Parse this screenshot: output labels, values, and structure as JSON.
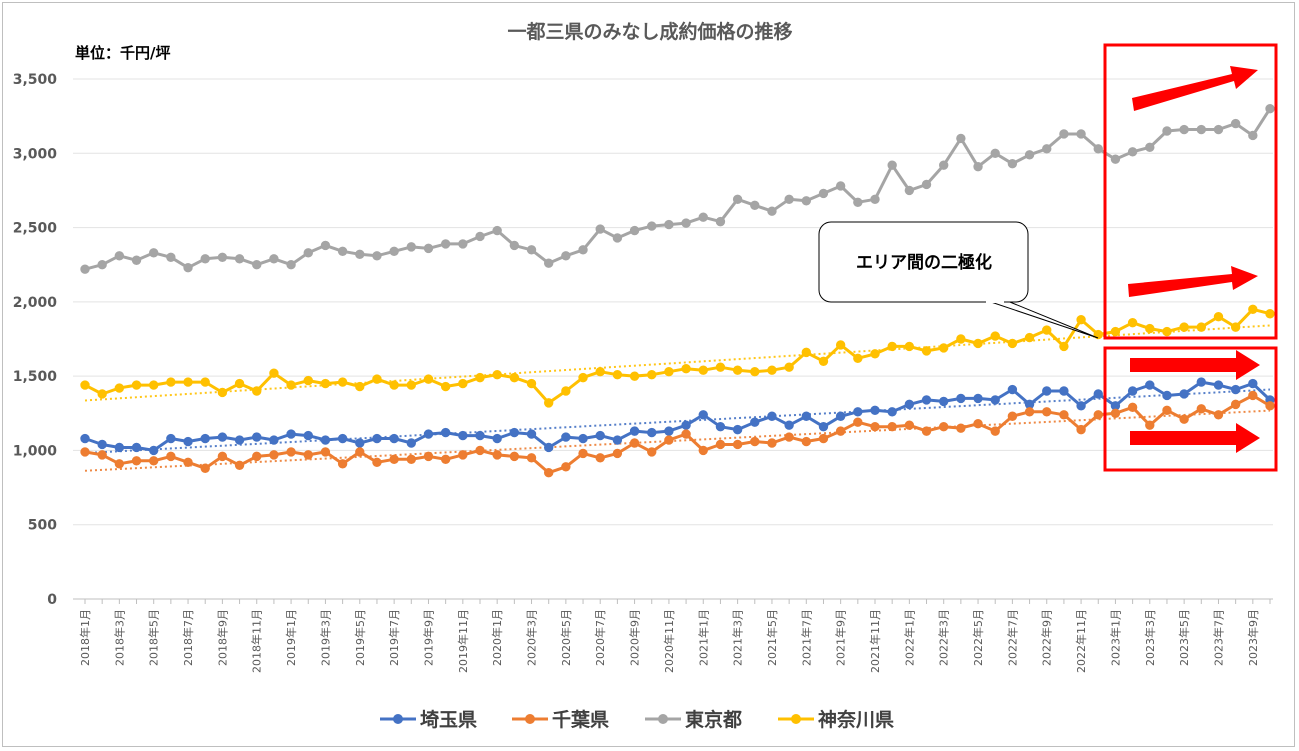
{
  "chart_data": {
    "type": "line",
    "title": "一都三県のみなし成約価格の推移",
    "unit_label": "単位：千円/坪",
    "ylim": [
      0,
      3500
    ],
    "yticks": [
      0,
      500,
      1000,
      1500,
      2000,
      2500,
      3000,
      3500
    ],
    "ytick_labels": [
      "0",
      "500",
      "1,000",
      "1,500",
      "2,000",
      "2,500",
      "3,000",
      "3,500"
    ],
    "x_label_every": 2,
    "categories": [
      "2018年1月",
      "2018年2月",
      "2018年3月",
      "2018年4月",
      "2018年5月",
      "2018年6月",
      "2018年7月",
      "2018年8月",
      "2018年9月",
      "2018年10月",
      "2018年11月",
      "2018年12月",
      "2019年1月",
      "2019年2月",
      "2019年3月",
      "2019年4月",
      "2019年5月",
      "2019年6月",
      "2019年7月",
      "2019年8月",
      "2019年9月",
      "2019年10月",
      "2019年11月",
      "2019年12月",
      "2020年1月",
      "2020年2月",
      "2020年3月",
      "2020年4月",
      "2020年5月",
      "2020年6月",
      "2020年7月",
      "2020年8月",
      "2020年9月",
      "2020年10月",
      "2020年11月",
      "2020年12月",
      "2021年1月",
      "2021年2月",
      "2021年3月",
      "2021年4月",
      "2021年5月",
      "2021年6月",
      "2021年7月",
      "2021年8月",
      "2021年9月",
      "2021年10月",
      "2021年11月",
      "2021年12月",
      "2022年1月",
      "2022年2月",
      "2022年3月",
      "2022年4月",
      "2022年5月",
      "2022年6月",
      "2022年7月",
      "2022年8月",
      "2022年9月",
      "2022年10月",
      "2022年11月",
      "2022年12月",
      "2023年1月",
      "2023年2月",
      "2023年3月",
      "2023年4月",
      "2023年5月",
      "2023年6月",
      "2023年7月",
      "2023年8月",
      "2023年9月",
      "2023年10月"
    ],
    "series": [
      {
        "name": "埼玉県",
        "color": "#4472c4",
        "values": [
          1080,
          1040,
          1020,
          1020,
          1000,
          1080,
          1060,
          1080,
          1090,
          1070,
          1090,
          1070,
          1110,
          1100,
          1070,
          1080,
          1050,
          1080,
          1080,
          1050,
          1110,
          1120,
          1100,
          1100,
          1080,
          1120,
          1110,
          1020,
          1090,
          1080,
          1100,
          1070,
          1130,
          1120,
          1130,
          1170,
          1240,
          1160,
          1140,
          1190,
          1230,
          1170,
          1230,
          1160,
          1230,
          1260,
          1270,
          1260,
          1310,
          1340,
          1330,
          1350,
          1350,
          1340,
          1410,
          1310,
          1400,
          1400,
          1300,
          1380,
          1300,
          1400,
          1440,
          1370,
          1380,
          1460,
          1440,
          1410,
          1450,
          1340
        ]
      },
      {
        "name": "千葉県",
        "color": "#ed7d31",
        "values": [
          990,
          970,
          910,
          930,
          930,
          960,
          920,
          880,
          960,
          900,
          960,
          970,
          990,
          970,
          990,
          910,
          990,
          920,
          940,
          940,
          960,
          940,
          970,
          1000,
          970,
          960,
          950,
          850,
          890,
          980,
          950,
          980,
          1050,
          990,
          1070,
          1110,
          1000,
          1040,
          1040,
          1060,
          1050,
          1090,
          1060,
          1080,
          1130,
          1190,
          1160,
          1160,
          1170,
          1130,
          1160,
          1150,
          1180,
          1130,
          1230,
          1260,
          1260,
          1240,
          1140,
          1240,
          1250,
          1290,
          1170,
          1270,
          1210,
          1280,
          1240,
          1310,
          1370,
          1300
        ]
      },
      {
        "name": "東京都",
        "color": "#a5a5a5",
        "values": [
          2220,
          2250,
          2310,
          2280,
          2330,
          2300,
          2230,
          2290,
          2300,
          2290,
          2250,
          2290,
          2250,
          2330,
          2380,
          2340,
          2320,
          2310,
          2340,
          2370,
          2360,
          2390,
          2390,
          2440,
          2480,
          2380,
          2350,
          2260,
          2310,
          2350,
          2490,
          2430,
          2480,
          2510,
          2520,
          2530,
          2570,
          2540,
          2690,
          2650,
          2610,
          2690,
          2680,
          2730,
          2780,
          2670,
          2690,
          2920,
          2750,
          2790,
          2920,
          3100,
          2910,
          3000,
          2930,
          2990,
          3030,
          3130,
          3130,
          3030,
          2960,
          3010,
          3040,
          3150,
          3160,
          3160,
          3160,
          3200,
          3120,
          3300
        ]
      },
      {
        "name": "神奈川県",
        "color": "#ffc000",
        "values": [
          1440,
          1380,
          1420,
          1440,
          1440,
          1460,
          1460,
          1460,
          1390,
          1450,
          1400,
          1520,
          1440,
          1470,
          1450,
          1460,
          1430,
          1480,
          1440,
          1440,
          1480,
          1430,
          1450,
          1490,
          1510,
          1490,
          1450,
          1320,
          1400,
          1490,
          1530,
          1510,
          1500,
          1510,
          1530,
          1550,
          1540,
          1560,
          1540,
          1530,
          1540,
          1560,
          1660,
          1600,
          1710,
          1620,
          1650,
          1700,
          1700,
          1670,
          1690,
          1750,
          1720,
          1770,
          1720,
          1760,
          1810,
          1700,
          1880,
          1780,
          1800,
          1860,
          1820,
          1800,
          1830,
          1830,
          1900,
          1830,
          1950,
          1920
        ]
      }
    ],
    "annotations": {
      "callout": "エリア間の二極化",
      "highlight_boxes": 2,
      "arrows": 4
    },
    "legend_position": "bottom"
  }
}
